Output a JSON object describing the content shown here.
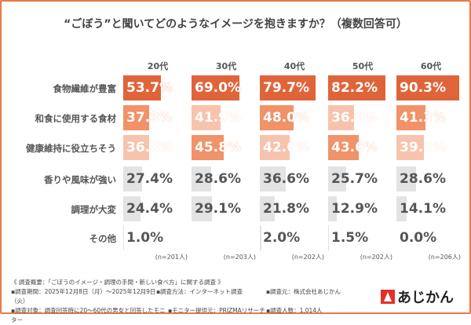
{
  "chart_data": {
    "type": "bar",
    "title": "“ごぼう”と聞いてどのようなイメージを抱きますか？（複数回答可）",
    "categories": [
      "食物繊維が豊富",
      "和食に使用する食材",
      "健康維持に役立ちそう",
      "香りや風味が強い",
      "調理が大変",
      "その他"
    ],
    "series": [
      {
        "name": "20代",
        "n": "(n=201人)",
        "values": [
          53.7,
          37.3,
          36.8,
          27.4,
          24.4,
          1.0
        ]
      },
      {
        "name": "30代",
        "n": "(n=203人)",
        "values": [
          69.0,
          41.9,
          45.8,
          28.6,
          29.1,
          0.0
        ]
      },
      {
        "name": "40代",
        "n": "(n=202人)",
        "values": [
          79.7,
          48.0,
          42.6,
          36.6,
          21.8,
          2.0
        ]
      },
      {
        "name": "50代",
        "n": "(n=202人)",
        "values": [
          82.2,
          36.6,
          43.6,
          25.7,
          12.9,
          1.5
        ]
      },
      {
        "name": "60代",
        "n": "(n=206人)",
        "values": [
          90.3,
          41.3,
          39.3,
          28.6,
          14.1,
          0.0
        ]
      }
    ],
    "value_labels": [
      [
        "53.7%",
        "37.3%",
        "36.8%",
        "27.4%",
        "24.4%",
        "1.0%"
      ],
      [
        "69.0%",
        "41.9%",
        "45.8%",
        "28.6%",
        "29.1%",
        ""
      ],
      [
        "79.7%",
        "48.0%",
        "42.6%",
        "36.6%",
        "21.8%",
        "2.0%"
      ],
      [
        "82.2%",
        "36.6%",
        "43.6%",
        "25.7%",
        "12.9%",
        "1.5%"
      ],
      [
        "90.3%",
        "41.3%",
        "39.3%",
        "28.6%",
        "14.1%",
        "0.0%"
      ]
    ],
    "xlim": [
      0,
      100
    ],
    "colors": {
      "rank1": "#e0643a",
      "rank2": "#f19268",
      "rank3": "#f8c3ad",
      "other": "#e3e3e3"
    }
  },
  "footer": {
    "line1": "《 調査概要：「ごぼうのイメージ・調理の手間・新しい食べ方」に関する調査 》",
    "period": "▪調査期間：2025年12月8日（月）～2025年12月9日（火）",
    "method": "▪調査方法：インターネット調査",
    "source": "▪調査元：株式会社あじかん",
    "target": "▪調査対象：調査回答時に20～60代の男女と回答したモニター",
    "provider": "▪モニター提供元：PRIZMAリサーチ",
    "count": "▪調査人数：1,014人"
  },
  "logo": {
    "text": "あじかん"
  }
}
